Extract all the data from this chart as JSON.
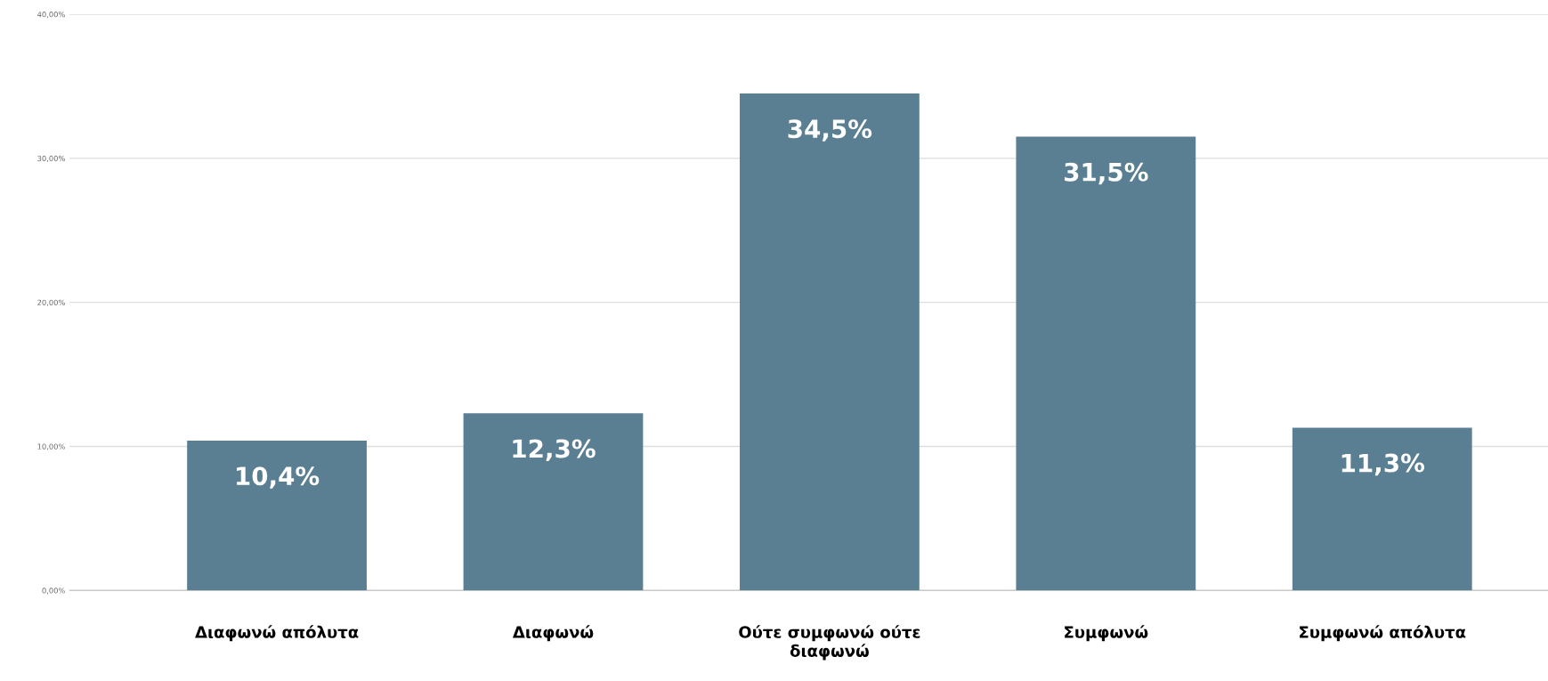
{
  "chart_data": {
    "type": "bar",
    "categories": [
      "Διαφωνώ απόλυτα",
      "Διαφωνώ",
      "Ούτε συμφωνώ ούτε\nδιαφωνώ",
      "Συμφωνώ",
      "Συμφωνώ απόλυτα"
    ],
    "values": [
      10.4,
      12.3,
      34.5,
      31.5,
      11.3
    ],
    "value_labels": [
      "10,4%",
      "12,3%",
      "34,5%",
      "31,5%",
      "11,3%"
    ],
    "color": "#5a7f92",
    "ylim": [
      0,
      40
    ],
    "yticks": [
      {
        "value": 0,
        "label": "0,00%"
      },
      {
        "value": 10,
        "label": "10,00%"
      },
      {
        "value": 20,
        "label": "20,00%"
      },
      {
        "value": 30,
        "label": "30,00%"
      },
      {
        "value": 40,
        "label": "40,00%"
      }
    ],
    "grid": "y"
  }
}
